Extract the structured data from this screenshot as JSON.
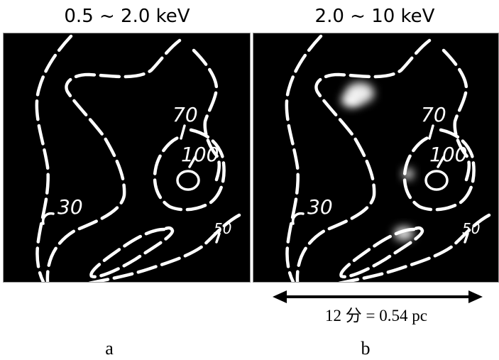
{
  "panels": [
    {
      "title": "0.5 ~ 2.0 keV",
      "letter": "a",
      "contour_labels": [
        "70",
        "100",
        "30",
        "50"
      ]
    },
    {
      "title": "2.0 ~ 10 keV",
      "letter": "b",
      "contour_labels": [
        "70",
        "100",
        "30",
        "50"
      ]
    }
  ],
  "scale": {
    "label": "12 分 = 0.54 pc"
  },
  "colors": {
    "image_background": "#000000",
    "contour": "#ffffff",
    "frame": "#9a9a9a",
    "text": "#000000"
  }
}
